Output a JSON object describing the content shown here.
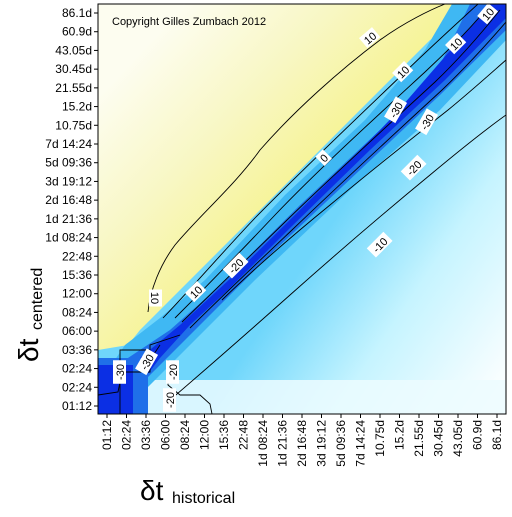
{
  "chart_data": {
    "type": "heatmap",
    "title": "",
    "copyright": "Copyright Gilles Zumbach 2012",
    "xlabel": {
      "main": "δt",
      "sub": "historical"
    },
    "ylabel": {
      "main": "δt",
      "sub": "centered"
    },
    "x_ticks": [
      "01:12",
      "02:24",
      "03:36",
      "06:00",
      "08:24",
      "12:00",
      "15:36",
      "22:48",
      "1d 08:24",
      "1d 21:36",
      "2d 16:48",
      "3d 19:12",
      "5d 09:36",
      "7d 14:24",
      "10.75d",
      "15.2d",
      "21.55d",
      "30.45d",
      "43.05d",
      "60.9d",
      "86.1d"
    ],
    "y_ticks": [
      "01:12",
      "02:24",
      "02:24",
      "03:36",
      "06:00",
      "08:24",
      "12:00",
      "15:36",
      "22:48",
      "1d 08:24",
      "1d 21:36",
      "2d 16:48",
      "3d 19:12",
      "5d 09:36",
      "7d 14:24",
      "10.75d",
      "15.2d",
      "21.55d",
      "30.45d",
      "43.05d",
      "60.9d",
      "86.1d"
    ],
    "contour_labels": [
      "10",
      "10",
      "10",
      "10",
      "0",
      "-30",
      "-30",
      "-20",
      "-20",
      "-10",
      "-20",
      "-30",
      "-20",
      "-30",
      "10",
      "10"
    ],
    "color_scale": {
      "positive": "#f3f070",
      "zero": "#ffffff",
      "light_negative": "#bff3ff",
      "mid_negative": "#28a9f0",
      "strong_negative": "#0a2ee6"
    },
    "grid": false
  }
}
